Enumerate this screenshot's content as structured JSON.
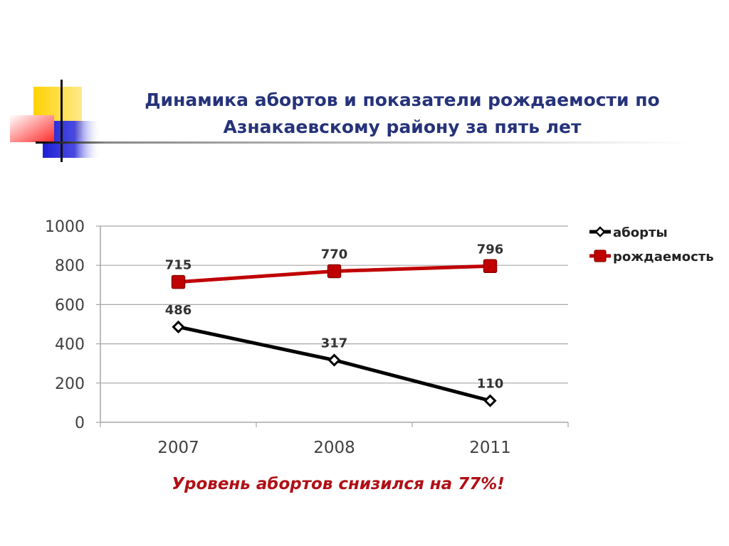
{
  "slide": {
    "title_line1": "Динамика абортов и показатели рождаемости по",
    "title_line2": "Азнакаевскому району за пять лет",
    "conclusion": "Уровень абортов снизился на 77%!"
  },
  "colors": {
    "title": "#26337a",
    "abortions": "#000000",
    "births": "#c00000",
    "conclusion": "#b01016",
    "grid": "#a6a6a6"
  },
  "chart_data": {
    "type": "line",
    "categories": [
      "2007",
      "2008",
      "2011"
    ],
    "ylim": [
      0,
      1000
    ],
    "yticks": [
      "0",
      "200",
      "400",
      "600",
      "800",
      "1000"
    ],
    "grid": true,
    "legend_position": "right",
    "series": [
      {
        "name": "аборты",
        "values": [
          486,
          317,
          110
        ],
        "labels": [
          "486",
          "317",
          "110"
        ],
        "marker": "diamond"
      },
      {
        "name": "рождаемость",
        "values": [
          715,
          770,
          796
        ],
        "labels": [
          "715",
          "770",
          "796"
        ],
        "marker": "square"
      }
    ]
  }
}
